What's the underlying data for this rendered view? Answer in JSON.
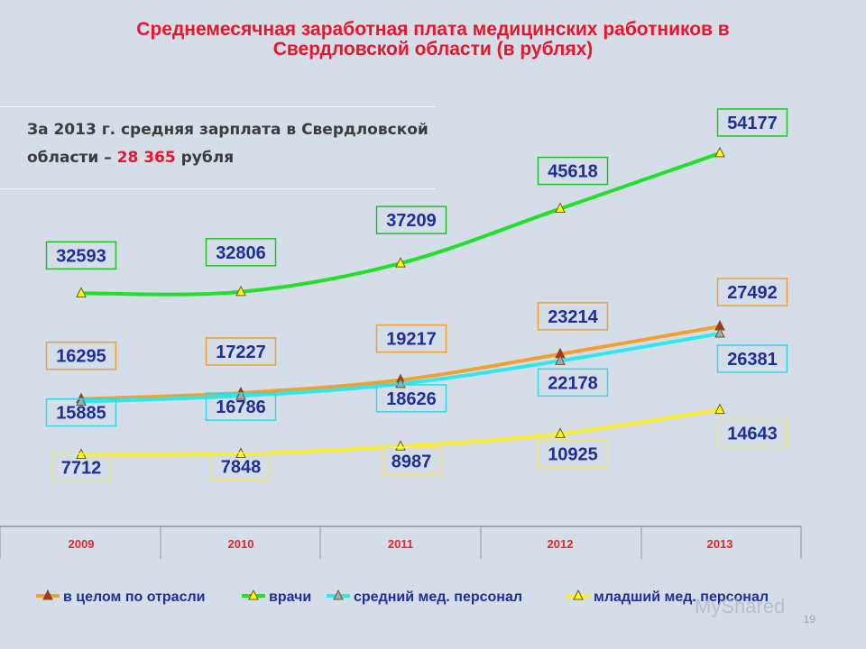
{
  "title_line1": "Среднемесячная заработная плата медицинских работников в",
  "title_line2": "Свердловской области (в рублях)",
  "note": {
    "prefix": "За 2013 г. средняя зарплата в Свердловской",
    "line2_prefix": "области – ",
    "value": "28 365",
    "suffix": " рубля"
  },
  "page_number": "19",
  "watermark": "MyShared",
  "chart_data": {
    "type": "line",
    "categories": [
      "2009",
      "2010",
      "2011",
      "2012",
      "2013"
    ],
    "ylim": [
      0,
      60000
    ],
    "grid": false,
    "legend_position": "bottom",
    "series": [
      {
        "name": "в целом по отрасли",
        "values": [
          16295,
          17227,
          19217,
          23214,
          27492
        ],
        "color": "#f0a030",
        "box_color": "#f0a030",
        "marker": "#c0282a"
      },
      {
        "name": "врачи",
        "values": [
          32593,
          32806,
          37209,
          45618,
          54177
        ],
        "color": "#22e02a",
        "box_color": "#22c02a",
        "marker": "#ffff00"
      },
      {
        "name": "средний мед. персонал",
        "values": [
          15885,
          16786,
          18626,
          22178,
          26381
        ],
        "color": "#2ee8f0",
        "box_color": "#2ed8e8",
        "marker": "#a0a8c0"
      },
      {
        "name": "младший мед. персонал",
        "values": [
          7712,
          7848,
          8987,
          10925,
          14643
        ],
        "color": "#f8f030",
        "box_color": "#f0e880",
        "marker": "#ffff00"
      }
    ]
  }
}
